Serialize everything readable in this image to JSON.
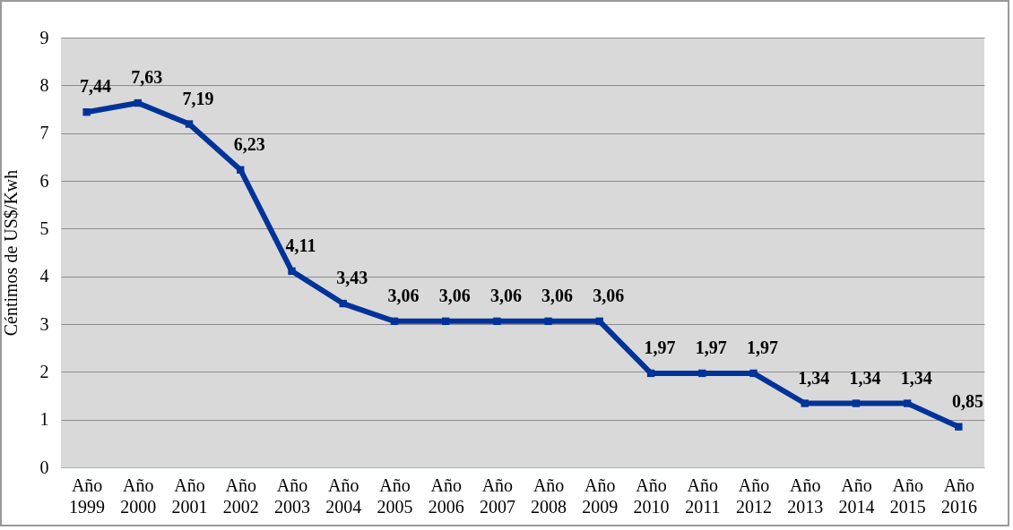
{
  "chart_data": {
    "type": "line",
    "ylabel": "Céntimos de US$/Kwh",
    "categories": [
      "Año 1999",
      "Año 2000",
      "Año 2001",
      "Año 2002",
      "Año 2003",
      "Año 2004",
      "Año 2005",
      "Año 2006",
      "Año 2007",
      "Año 2008",
      "Año 2009",
      "Año 2010",
      "Año 2011",
      "Año 2012",
      "Año 2013",
      "Año 2014",
      "Año 2015",
      "Año 2016"
    ],
    "series": [
      {
        "color": "#003399",
        "values": [
          7.44,
          7.63,
          7.19,
          6.23,
          4.11,
          3.43,
          3.06,
          3.06,
          3.06,
          3.06,
          3.06,
          1.97,
          1.97,
          1.97,
          1.34,
          1.34,
          1.34,
          0.85
        ],
        "value_labels": [
          "7,44",
          "7,63",
          "7,19",
          "6,23",
          "4,11",
          "3,43",
          "3,06",
          "3,06",
          "3,06",
          "3,06",
          "3,06",
          "1,97",
          "1,97",
          "1,97",
          "1,34",
          "1,34",
          "1,34",
          "0,85"
        ]
      }
    ],
    "ylim": [
      0,
      9
    ],
    "yticks": [
      0,
      1,
      2,
      3,
      4,
      5,
      6,
      7,
      8,
      9
    ],
    "grid": "y",
    "marker": "square",
    "line_style": "solid"
  }
}
